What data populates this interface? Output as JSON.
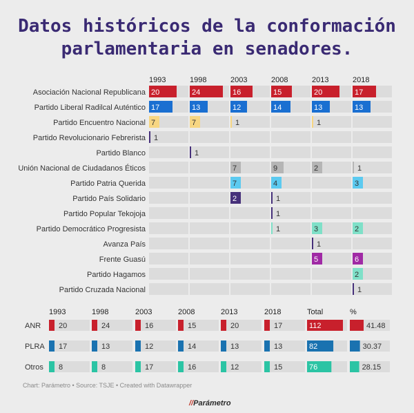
{
  "title": "Datos históricos de la conformación parlamentaria en senadores.",
  "credits": "Chart: Parámetro • Source: TSJE • Created with Datawrapper",
  "logo": "Parámetro",
  "chart_data": [
    {
      "type": "table",
      "years": [
        "1993",
        "1998",
        "2003",
        "2008",
        "2013",
        "2018"
      ],
      "rows": [
        {
          "party": "Asociación Nacional Republicana",
          "color": "#c8202c",
          "values": [
            20,
            24,
            16,
            15,
            20,
            17
          ]
        },
        {
          "party": "Partido Liberal Radilcal Auténtico",
          "color": "#1a6fd1",
          "values": [
            17,
            13,
            12,
            14,
            13,
            13
          ]
        },
        {
          "party": "Partido Encuentro Nacional",
          "color": "#f7d682",
          "values": [
            7,
            7,
            1,
            null,
            1,
            null
          ]
        },
        {
          "party": "Partido Revolucionario Febrerista",
          "color": "#46307a",
          "values": [
            1,
            null,
            null,
            null,
            null,
            null
          ]
        },
        {
          "party": "Partido Blanco",
          "color": "#46307a",
          "values": [
            null,
            1,
            null,
            null,
            null,
            null
          ]
        },
        {
          "party": "Unión Nacional de Ciudadanos Éticos",
          "color": "#b5b5b5",
          "values": [
            null,
            null,
            7,
            9,
            2,
            1
          ]
        },
        {
          "party": "Partido Patria Querida",
          "color": "#5ccaf0",
          "values": [
            null,
            null,
            7,
            4,
            null,
            3
          ]
        },
        {
          "party": "Partido País Solidario",
          "color": "#46307a",
          "values": [
            null,
            null,
            2,
            1,
            null,
            null
          ]
        },
        {
          "party": "Partido Popular Tekojoja",
          "color": "#46307a",
          "values": [
            null,
            null,
            null,
            1,
            null,
            null
          ]
        },
        {
          "party": "Partido Democrático Progresista",
          "color": "#7fe0c8",
          "values": [
            null,
            null,
            null,
            1,
            3,
            2
          ]
        },
        {
          "party": "Avanza País",
          "color": "#46307a",
          "values": [
            null,
            null,
            null,
            null,
            1,
            null
          ]
        },
        {
          "party": "Frente Guasú",
          "color": "#a02aa5",
          "values": [
            null,
            null,
            null,
            null,
            5,
            6
          ]
        },
        {
          "party": "Partido Hagamos",
          "color": "#7fe0c8",
          "values": [
            null,
            null,
            null,
            null,
            null,
            2
          ]
        },
        {
          "party": "Partido Cruzada Nacional",
          "color": "#46307a",
          "values": [
            null,
            null,
            null,
            null,
            null,
            1
          ]
        }
      ]
    },
    {
      "type": "table",
      "years": [
        "1993",
        "1998",
        "2003",
        "2008",
        "2013",
        "2018"
      ],
      "total_label": "Total",
      "pct_label": "%",
      "rows": [
        {
          "party": "ANR",
          "color": "#c8202c",
          "values": [
            20,
            24,
            16,
            15,
            20,
            17
          ],
          "total": 112,
          "pct": "41.48"
        },
        {
          "party": "PLRA",
          "color": "#1a72b0",
          "values": [
            17,
            13,
            12,
            14,
            13,
            13
          ],
          "total": 82,
          "pct": "30.37"
        },
        {
          "party": "Otros",
          "color": "#2bc4a4",
          "values": [
            8,
            8,
            17,
            16,
            12,
            15
          ],
          "total": 76,
          "pct": "28.15"
        }
      ]
    }
  ]
}
